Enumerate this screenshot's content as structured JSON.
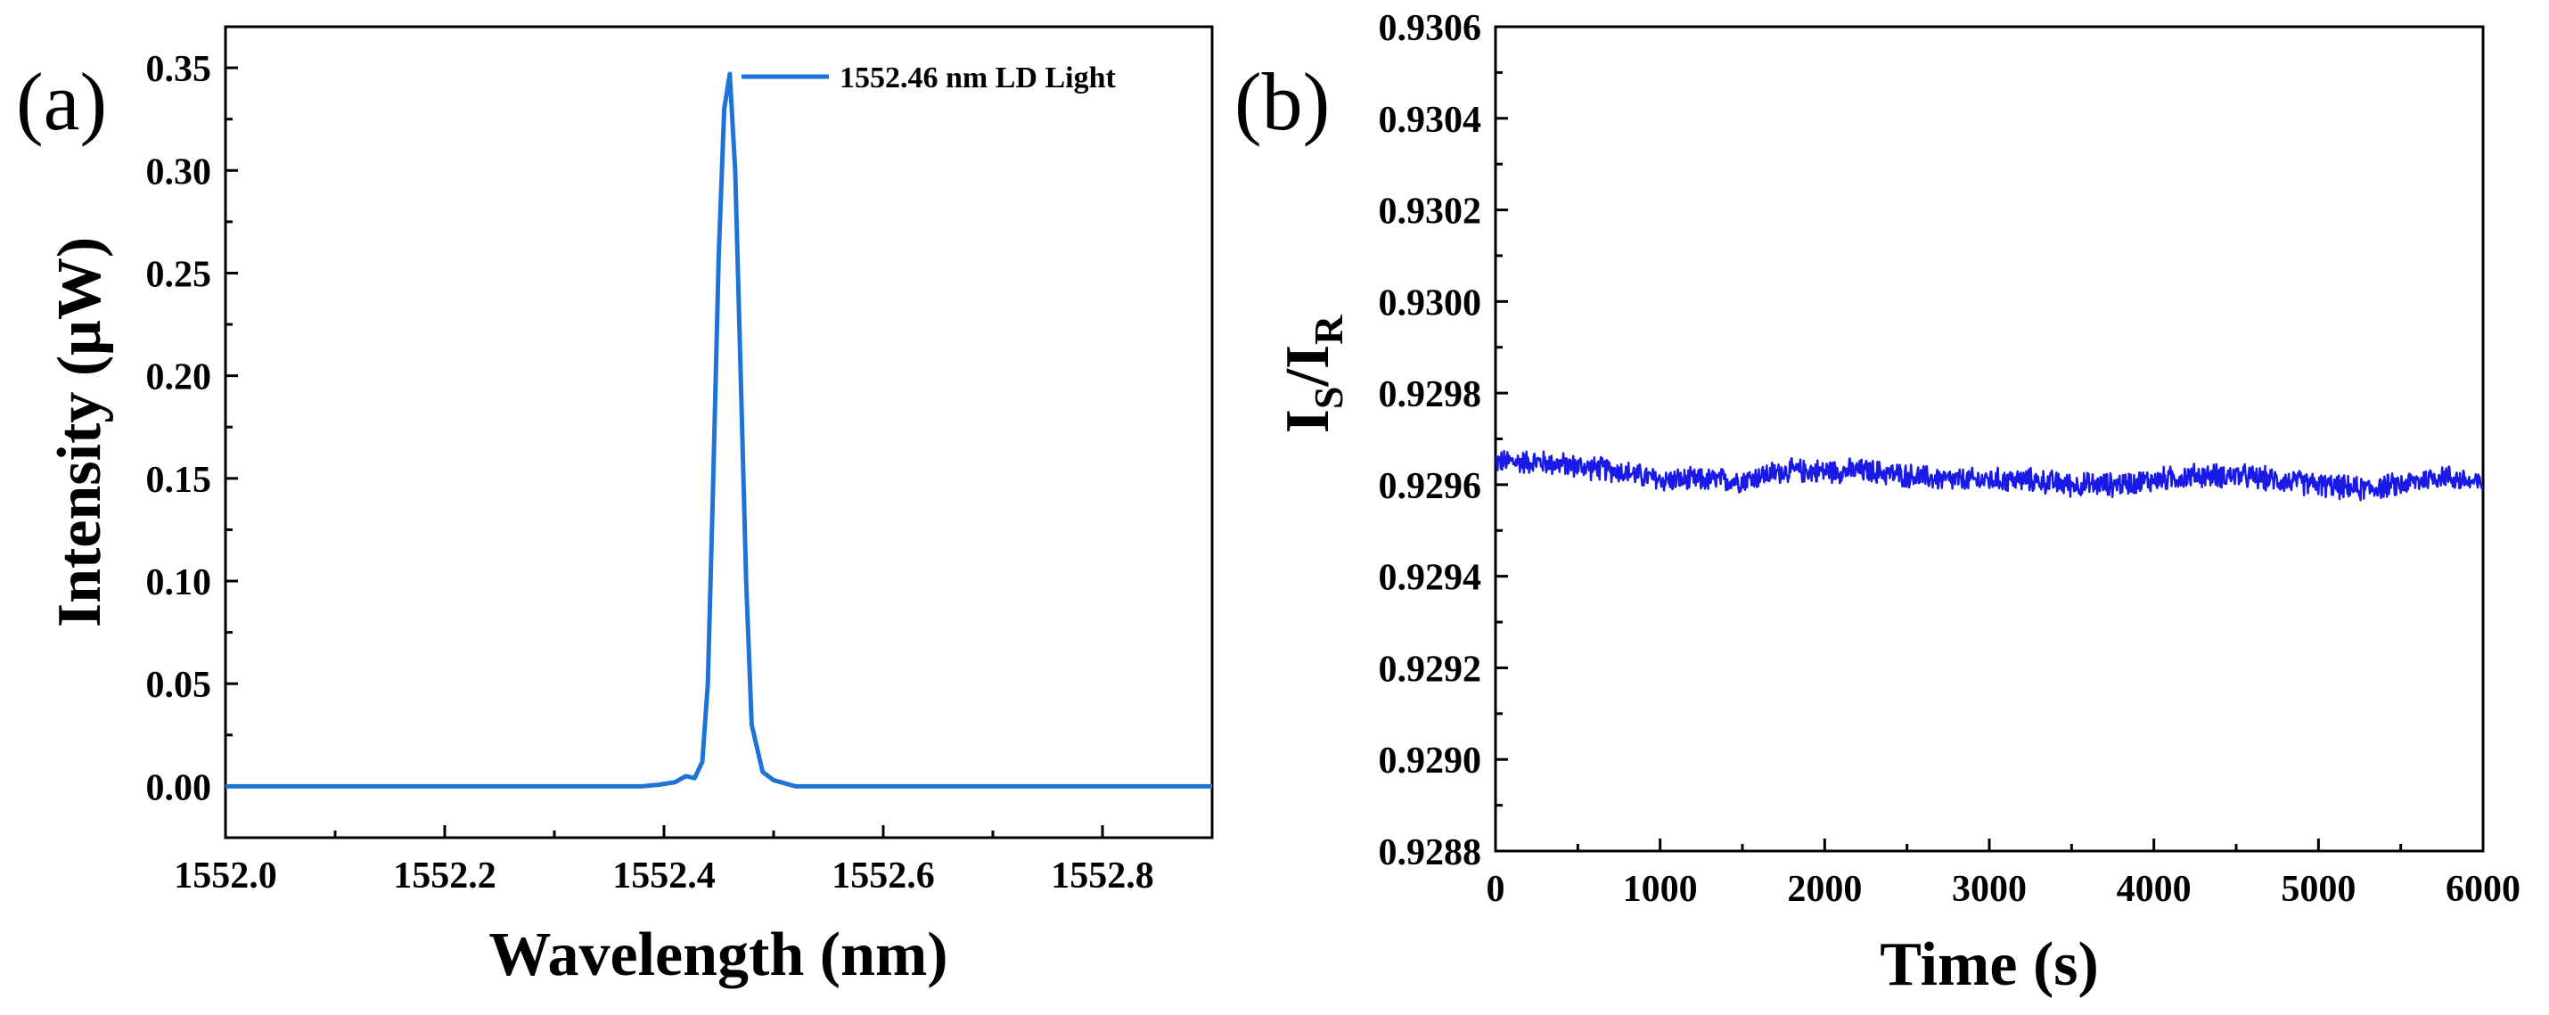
{
  "chart_data": [
    {
      "panel_label": "(a)",
      "type": "line",
      "xlabel": "Wavelength (nm)",
      "ylabel": "Intensity (μW)",
      "xlim": [
        1552.0,
        1552.9
      ],
      "ylim": [
        -0.025,
        0.37
      ],
      "xticks": [
        1552.0,
        1552.2,
        1552.4,
        1552.6,
        1552.8
      ],
      "xtick_labels": [
        "1552.0",
        "1552.2",
        "1552.4",
        "1552.6",
        "1552.8"
      ],
      "yticks": [
        0.0,
        0.05,
        0.1,
        0.15,
        0.2,
        0.25,
        0.3,
        0.35
      ],
      "ytick_labels": [
        "0.00",
        "0.05",
        "0.10",
        "0.15",
        "0.20",
        "0.25",
        "0.30",
        "0.35"
      ],
      "legend": "top-right",
      "series": [
        {
          "name": "1552.46 nm LD Light",
          "color": "#1f73d6",
          "x": [
            1552.0,
            1552.38,
            1552.395,
            1552.41,
            1552.42,
            1552.428,
            1552.435,
            1552.44,
            1552.445,
            1552.45,
            1552.455,
            1552.46,
            1552.465,
            1552.47,
            1552.475,
            1552.48,
            1552.49,
            1552.5,
            1552.52,
            1552.9
          ],
          "y": [
            0.0,
            0.0,
            0.0008,
            0.002,
            0.005,
            0.004,
            0.012,
            0.05,
            0.15,
            0.26,
            0.33,
            0.347,
            0.3,
            0.2,
            0.1,
            0.03,
            0.007,
            0.003,
            0.0,
            0.0
          ]
        }
      ]
    },
    {
      "panel_label": "(b)",
      "type": "line",
      "xlabel": "Time (s)",
      "ylabel_main": "I",
      "ylabel_sub1": "S",
      "ylabel_mid": "/I",
      "ylabel_sub2": "R",
      "xlim": [
        0,
        6000
      ],
      "ylim": [
        0.9288,
        0.9306
      ],
      "xticks": [
        0,
        1000,
        2000,
        3000,
        4000,
        5000,
        6000
      ],
      "xtick_labels": [
        "0",
        "1000",
        "2000",
        "3000",
        "4000",
        "5000",
        "6000"
      ],
      "yticks": [
        0.9288,
        0.929,
        0.9292,
        0.9294,
        0.9296,
        0.9298,
        0.93,
        0.9302,
        0.9304,
        0.9306
      ],
      "ytick_labels": [
        "0.9288",
        "0.9290",
        "0.9292",
        "0.9294",
        "0.9296",
        "0.9298",
        "0.9300",
        "0.9302",
        "0.9304",
        "0.9306"
      ],
      "series": [
        {
          "name": "Is/IR",
          "color": "#1a1ae6",
          "x": [
            0,
            250,
            500,
            750,
            1000,
            1250,
            1500,
            1750,
            2000,
            2250,
            2500,
            2750,
            3000,
            3250,
            3500,
            3750,
            4000,
            4250,
            4500,
            4750,
            5000,
            5250,
            5500,
            5750,
            6000
          ],
          "y": [
            0.92965,
            0.92965,
            0.92964,
            0.92963,
            0.92961,
            0.92961,
            0.92961,
            0.92963,
            0.92963,
            0.92963,
            0.92962,
            0.92961,
            0.92961,
            0.92961,
            0.9296,
            0.9296,
            0.92961,
            0.92962,
            0.92962,
            0.92961,
            0.9296,
            0.92959,
            0.9296,
            0.92962,
            0.9296
          ],
          "noise_amplitude": 3e-05
        }
      ]
    }
  ]
}
